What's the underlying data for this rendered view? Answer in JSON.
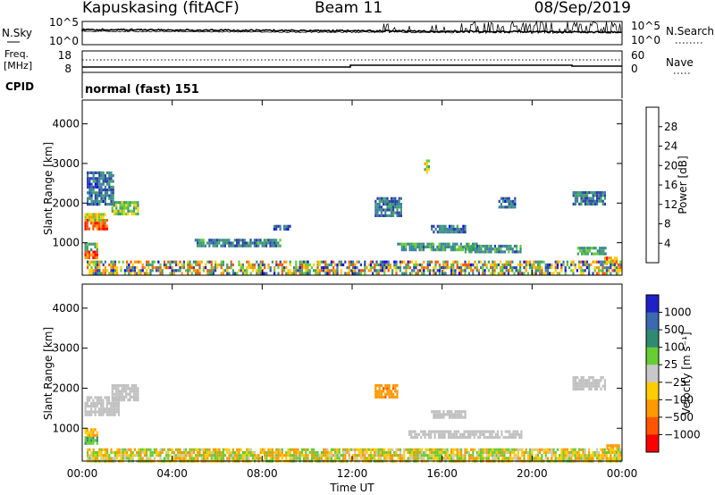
{
  "header": {
    "station": "Kapuskasing (fitACF)",
    "beam": "Beam 11",
    "date": "08/Sep/2019"
  },
  "nsky_panel": {
    "left_label": "N.Sky",
    "right_label": "N.Search",
    "left_ticks": [
      "10^5",
      "10^0"
    ],
    "right_ticks": [
      "10^5",
      "10^0"
    ]
  },
  "freq_panel": {
    "left_label": "Freq.",
    "left_units": "[MHz]",
    "right_label": "Nave",
    "left_ticks": [
      "18",
      "8"
    ],
    "right_ticks": [
      "60",
      "0"
    ]
  },
  "cpid_panel": {
    "label": "CPID",
    "text": "normal (fast) 151"
  },
  "colors": {
    "power_scale": [
      "#0000ff",
      "#2b3fa8",
      "#3b7fa0",
      "#3ea06a",
      "#66cc33",
      "#ffd000",
      "#ff9900",
      "#ff5500",
      "#ff0000"
    ],
    "velocity_scale": [
      "#2020c8",
      "#3a6ab0",
      "#2e8a70",
      "#66cc33",
      "#c8c8c8",
      "#ffcc00",
      "#ff9900",
      "#ff5500",
      "#ff0000"
    ],
    "ground_scatter": "#c0c0c0"
  },
  "chart_data": [
    {
      "type": "heatmap",
      "panel": "power",
      "ylabel": "Slant Range [km]",
      "ylim": [
        180,
        4600
      ],
      "yticks": [
        "1000",
        "2000",
        "3000",
        "4000"
      ],
      "xlim": [
        0,
        24
      ],
      "colorbar": {
        "label": "Power [dB]",
        "ticks": [
          "4",
          "8",
          "12",
          "16",
          "20",
          "24",
          "28"
        ],
        "range": [
          0,
          32
        ]
      },
      "regions": [
        {
          "t0": 0.1,
          "t1": 1.1,
          "r0": 1350,
          "r1": 1600,
          "value": 28
        },
        {
          "t0": 0.1,
          "t1": 1.0,
          "r0": 1600,
          "r1": 1750,
          "value": 18
        },
        {
          "t0": 0.1,
          "t1": 0.7,
          "r0": 650,
          "r1": 800,
          "value": 27
        },
        {
          "t0": 0.1,
          "t1": 0.7,
          "r0": 850,
          "r1": 1000,
          "value": 14
        },
        {
          "t0": 1.3,
          "t1": 2.5,
          "r0": 1700,
          "r1": 2050,
          "value": 15
        },
        {
          "t0": 0.2,
          "t1": 1.4,
          "r0": 2000,
          "r1": 2800,
          "value": 8
        },
        {
          "t0": 5.0,
          "t1": 8.8,
          "r0": 900,
          "r1": 1100,
          "value": 10
        },
        {
          "t0": 8.5,
          "t1": 9.2,
          "r0": 1350,
          "r1": 1450,
          "value": 8
        },
        {
          "t0": 13.0,
          "t1": 14.2,
          "r0": 1700,
          "r1": 2150,
          "value": 9
        },
        {
          "t0": 14.0,
          "t1": 17.5,
          "r0": 800,
          "r1": 1000,
          "value": 12
        },
        {
          "t0": 15.5,
          "t1": 17.0,
          "r0": 1300,
          "r1": 1450,
          "value": 8
        },
        {
          "t0": 17.0,
          "t1": 19.5,
          "r0": 750,
          "r1": 950,
          "value": 11
        },
        {
          "t0": 18.5,
          "t1": 19.2,
          "r0": 1900,
          "r1": 2150,
          "value": 8
        },
        {
          "t0": 21.8,
          "t1": 23.2,
          "r0": 2000,
          "r1": 2300,
          "value": 9
        },
        {
          "t0": 22.0,
          "t1": 23.3,
          "r0": 750,
          "r1": 900,
          "value": 13
        },
        {
          "t0": 23.2,
          "t1": 23.8,
          "r0": 500,
          "r1": 650,
          "value": 24
        },
        {
          "t0": 15.2,
          "t1": 15.4,
          "r0": 2800,
          "r1": 3100,
          "value": 18
        },
        {
          "t0": 0.2,
          "t1": 23.9,
          "r0": 200,
          "r1": 550,
          "value": 12
        }
      ]
    },
    {
      "type": "heatmap",
      "panel": "velocity",
      "ylabel": "Slant Range [km]",
      "ylim": [
        180,
        4600
      ],
      "yticks": [
        "1000",
        "2000",
        "3000",
        "4000"
      ],
      "xlabel": "Time UT",
      "xticks": [
        "00:00",
        "04:00",
        "08:00",
        "12:00",
        "16:00",
        "20:00",
        "00:00"
      ],
      "xlim": [
        0,
        24
      ],
      "colorbar": {
        "label": "Velocity [m s⁻¹]",
        "ticks": [
          "1000",
          "500",
          "100",
          "25",
          "−25",
          "−100",
          "−500",
          "−1000"
        ]
      },
      "regions": [
        {
          "t0": 0.1,
          "t1": 1.6,
          "r0": 1350,
          "r1": 1800,
          "value": "ground"
        },
        {
          "t0": 1.3,
          "t1": 2.5,
          "r0": 1700,
          "r1": 2100,
          "value": "ground"
        },
        {
          "t0": 0.1,
          "t1": 0.7,
          "r0": 650,
          "r1": 800,
          "value": 100
        },
        {
          "t0": 0.1,
          "t1": 0.7,
          "r0": 850,
          "r1": 1000,
          "value": -100
        },
        {
          "t0": 13.0,
          "t1": 14.0,
          "r0": 1800,
          "r1": 2100,
          "value": -400
        },
        {
          "t0": 15.5,
          "t1": 17.0,
          "r0": 1300,
          "r1": 1450,
          "value": "ground"
        },
        {
          "t0": 14.5,
          "t1": 19.5,
          "r0": 800,
          "r1": 950,
          "value": "ground"
        },
        {
          "t0": 21.8,
          "t1": 23.2,
          "r0": 2000,
          "r1": 2300,
          "value": "ground"
        },
        {
          "t0": 23.3,
          "t1": 23.9,
          "r0": 400,
          "r1": 600,
          "value": -200
        },
        {
          "t0": 0.2,
          "t1": 23.9,
          "r0": 200,
          "r1": 500,
          "value": -60
        }
      ]
    }
  ]
}
